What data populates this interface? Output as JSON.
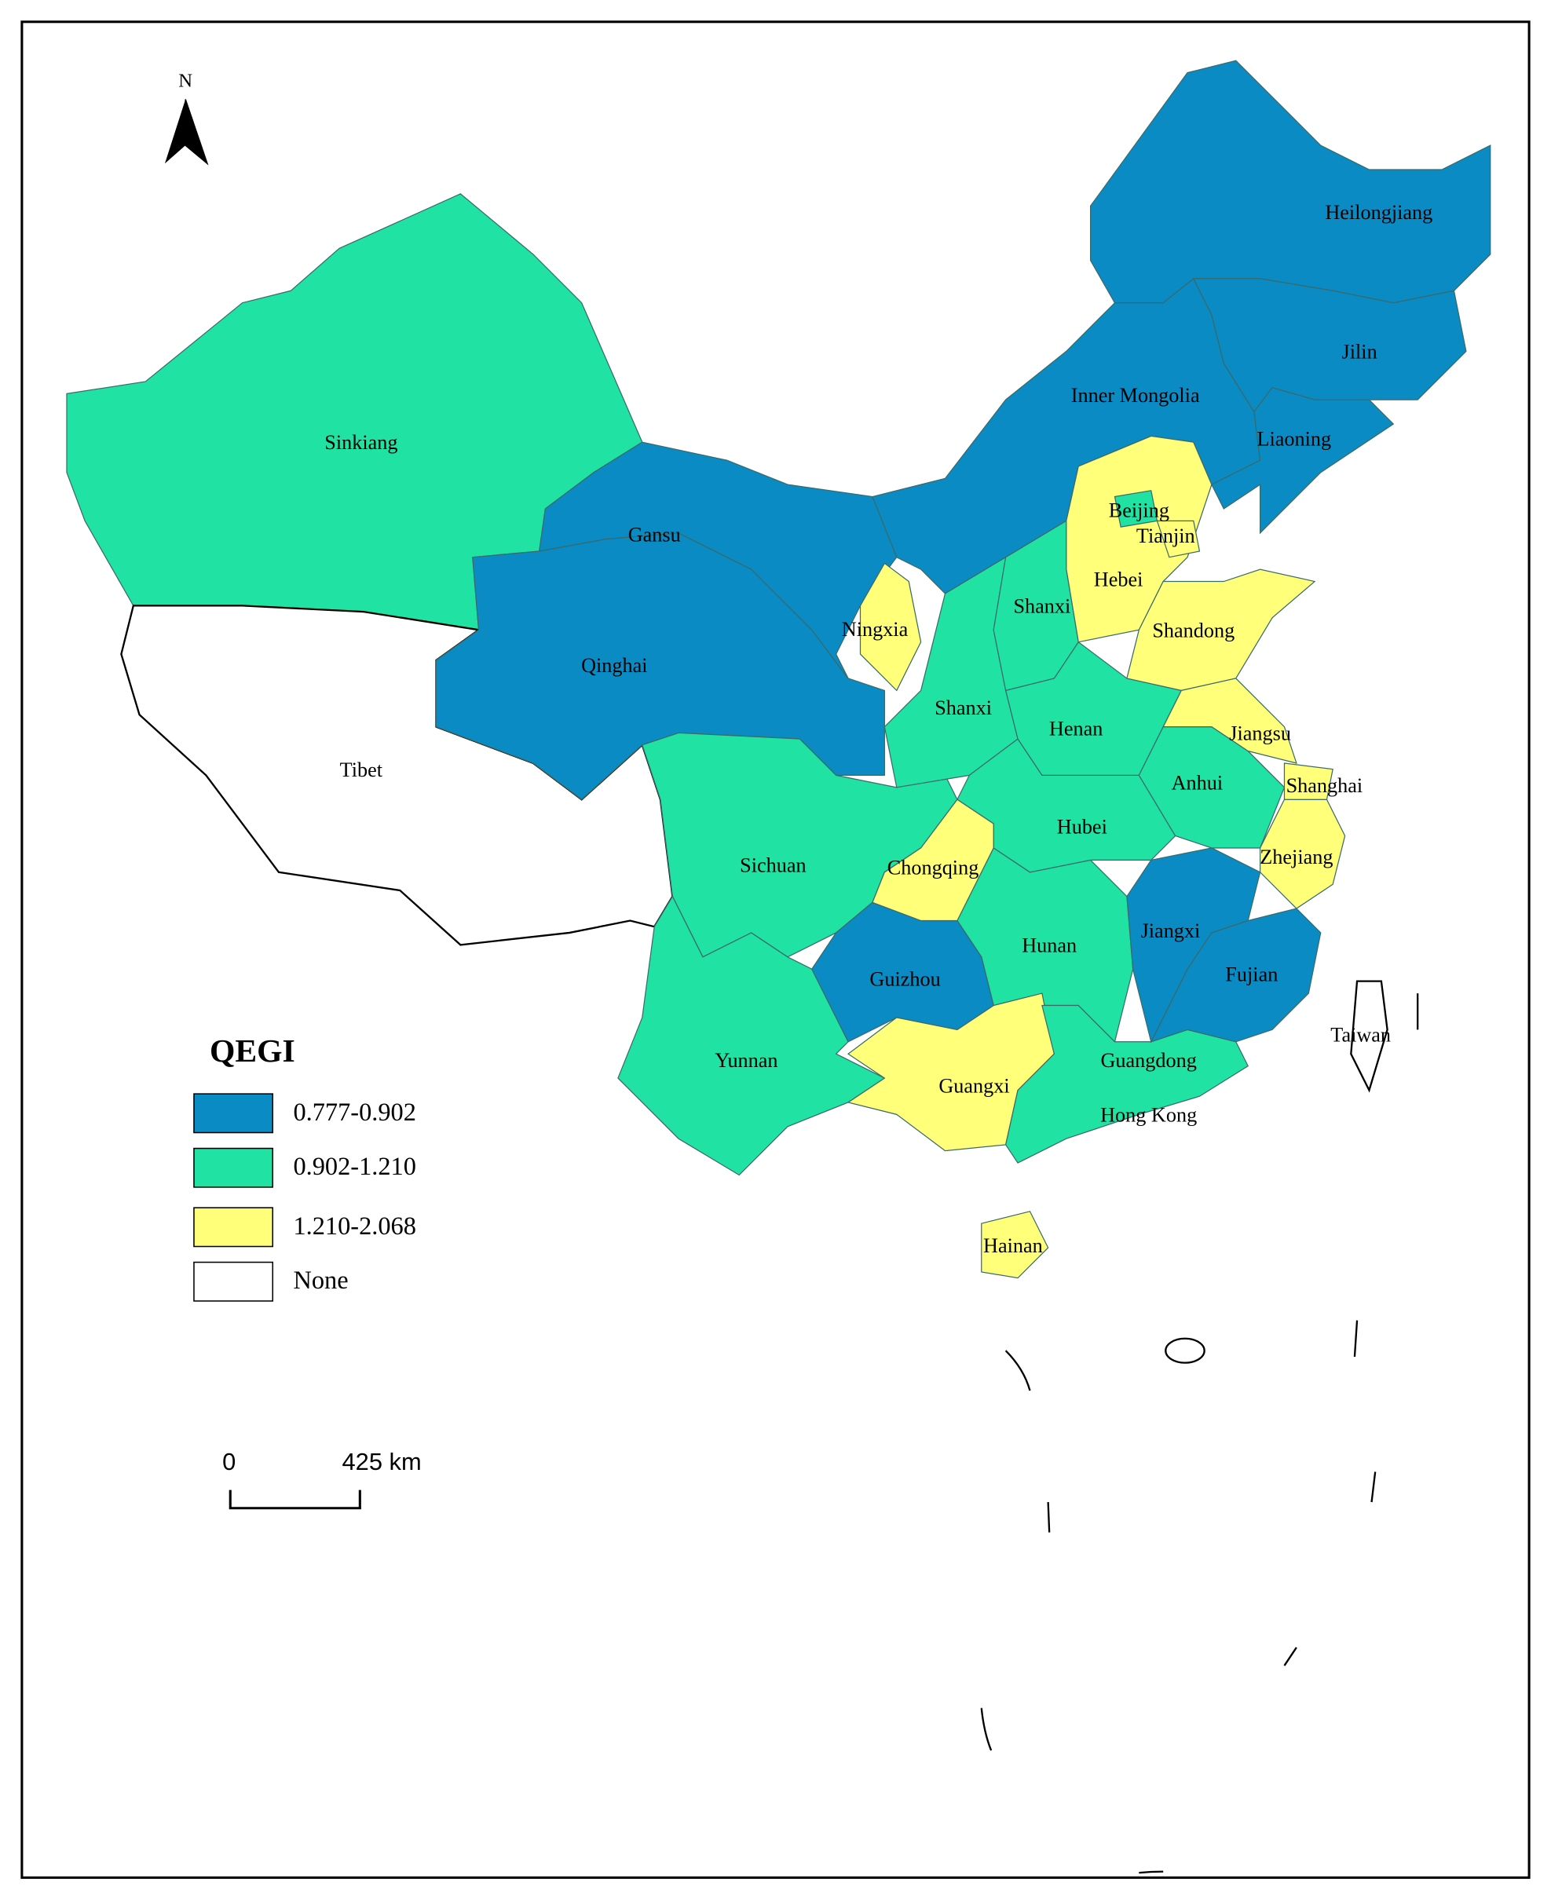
{
  "north": "N",
  "legend": {
    "title": "QEGI",
    "items": [
      {
        "label": "0.777-0.902",
        "color": "#0a8bc4",
        "regions": [
          "Gansu",
          "Qinghai",
          "Inner Mongolia",
          "Heilongjiang",
          "Jilin",
          "Liaoning",
          "Guizhou",
          "Jiangxi",
          "Fujian"
        ]
      },
      {
        "label": "0.902-1.210",
        "color": "#20e3a3",
        "regions": [
          "Sinkiang",
          "Shanxi",
          "Shanxi",
          "Henan",
          "Anhui",
          "Hubei",
          "Sichuan",
          "Hunan",
          "Yunnan",
          "Guangdong",
          "Beijing"
        ]
      },
      {
        "label": "1.210-2.068",
        "color": "#ffff7a",
        "regions": [
          "Tianjin",
          "Hebei",
          "Shandong",
          "Ningxia",
          "Jiangsu",
          "Shanghai",
          "Zhejiang",
          "Chongqing",
          "Guangxi",
          "Hainan"
        ]
      },
      {
        "label": "None",
        "color": "#ffffff",
        "regions": [
          "Tibet",
          "Taiwan"
        ]
      }
    ]
  },
  "other_labels": [
    "Hong Kong"
  ],
  "scale_bar": {
    "start": "0",
    "end": "425 km"
  }
}
